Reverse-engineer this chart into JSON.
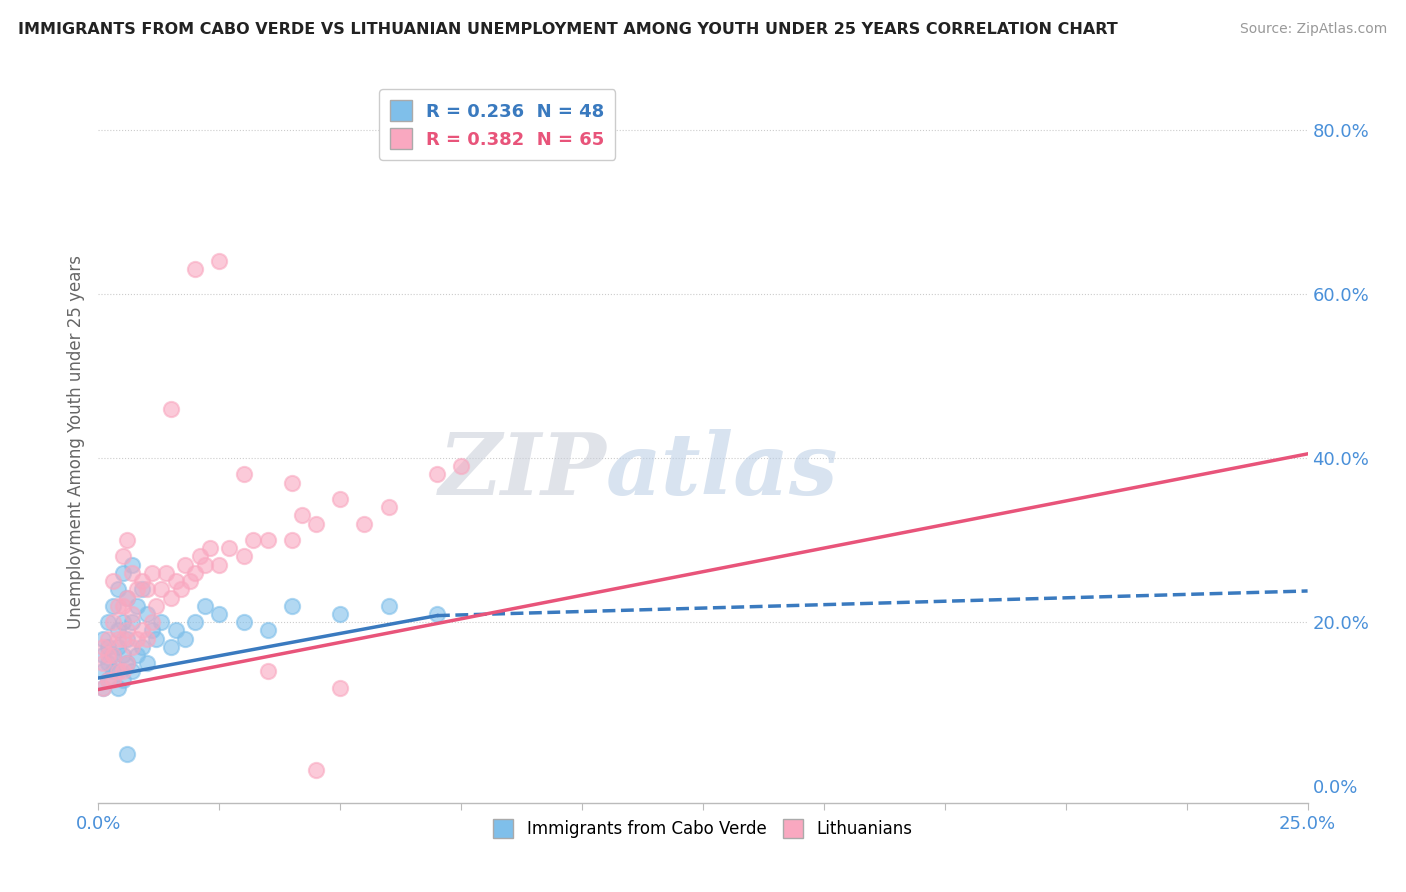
{
  "title": "IMMIGRANTS FROM CABO VERDE VS LITHUANIAN UNEMPLOYMENT AMONG YOUTH UNDER 25 YEARS CORRELATION CHART",
  "source": "Source: ZipAtlas.com",
  "ylabel": "Unemployment Among Youth under 25 years",
  "legend_blue_r": "R = 0.236",
  "legend_blue_n": "N = 48",
  "legend_pink_r": "R = 0.382",
  "legend_pink_n": "N = 65",
  "blue_color": "#7fbfea",
  "pink_color": "#f9a8c0",
  "blue_line_color": "#3a7abf",
  "pink_line_color": "#e8547a",
  "right_yticks": [
    0.0,
    0.2,
    0.4,
    0.6,
    0.8
  ],
  "right_ytick_labels": [
    "0.0%",
    "20.0%",
    "40.0%",
    "60.0%",
    "80.0%"
  ],
  "watermark_zip": "ZIP",
  "watermark_atlas": "atlas",
  "xlim": [
    0.0,
    0.25
  ],
  "ylim": [
    -0.02,
    0.86
  ],
  "blue_scatter_x": [
    0.001,
    0.001,
    0.001,
    0.001,
    0.002,
    0.002,
    0.002,
    0.002,
    0.003,
    0.003,
    0.003,
    0.004,
    0.004,
    0.004,
    0.004,
    0.004,
    0.005,
    0.005,
    0.005,
    0.005,
    0.006,
    0.006,
    0.006,
    0.007,
    0.007,
    0.007,
    0.008,
    0.008,
    0.009,
    0.009,
    0.01,
    0.01,
    0.011,
    0.012,
    0.013,
    0.015,
    0.016,
    0.018,
    0.02,
    0.022,
    0.025,
    0.03,
    0.035,
    0.04,
    0.05,
    0.06,
    0.07,
    0.006
  ],
  "blue_scatter_y": [
    0.12,
    0.14,
    0.16,
    0.18,
    0.13,
    0.15,
    0.17,
    0.2,
    0.14,
    0.16,
    0.22,
    0.12,
    0.14,
    0.17,
    0.19,
    0.24,
    0.13,
    0.16,
    0.2,
    0.26,
    0.15,
    0.18,
    0.23,
    0.14,
    0.2,
    0.27,
    0.16,
    0.22,
    0.17,
    0.24,
    0.15,
    0.21,
    0.19,
    0.18,
    0.2,
    0.17,
    0.19,
    0.18,
    0.2,
    0.22,
    0.21,
    0.2,
    0.19,
    0.22,
    0.21,
    0.22,
    0.21,
    0.04
  ],
  "pink_scatter_x": [
    0.001,
    0.001,
    0.001,
    0.002,
    0.002,
    0.002,
    0.003,
    0.003,
    0.003,
    0.003,
    0.004,
    0.004,
    0.004,
    0.005,
    0.005,
    0.005,
    0.005,
    0.006,
    0.006,
    0.006,
    0.006,
    0.007,
    0.007,
    0.007,
    0.008,
    0.008,
    0.009,
    0.009,
    0.01,
    0.01,
    0.011,
    0.011,
    0.012,
    0.013,
    0.014,
    0.015,
    0.016,
    0.017,
    0.018,
    0.019,
    0.02,
    0.021,
    0.022,
    0.023,
    0.025,
    0.027,
    0.03,
    0.032,
    0.035,
    0.04,
    0.042,
    0.045,
    0.05,
    0.055,
    0.06,
    0.07,
    0.075,
    0.015,
    0.02,
    0.025,
    0.03,
    0.04,
    0.05,
    0.035,
    0.045
  ],
  "pink_scatter_y": [
    0.12,
    0.15,
    0.17,
    0.13,
    0.16,
    0.18,
    0.13,
    0.16,
    0.2,
    0.25,
    0.14,
    0.18,
    0.22,
    0.14,
    0.18,
    0.22,
    0.28,
    0.15,
    0.19,
    0.23,
    0.3,
    0.17,
    0.21,
    0.26,
    0.18,
    0.24,
    0.19,
    0.25,
    0.18,
    0.24,
    0.2,
    0.26,
    0.22,
    0.24,
    0.26,
    0.23,
    0.25,
    0.24,
    0.27,
    0.25,
    0.26,
    0.28,
    0.27,
    0.29,
    0.27,
    0.29,
    0.28,
    0.3,
    0.3,
    0.3,
    0.33,
    0.32,
    0.35,
    0.32,
    0.34,
    0.38,
    0.39,
    0.46,
    0.63,
    0.64,
    0.38,
    0.37,
    0.12,
    0.14,
    0.02
  ],
  "blue_trend_x0": 0.0,
  "blue_trend_y0": 0.132,
  "blue_trend_x1": 0.07,
  "blue_trend_y1": 0.208,
  "blue_trend_x2": 0.25,
  "blue_trend_y2": 0.238,
  "pink_trend_x0": 0.0,
  "pink_trend_y0": 0.118,
  "pink_trend_x1": 0.25,
  "pink_trend_y1": 0.405
}
